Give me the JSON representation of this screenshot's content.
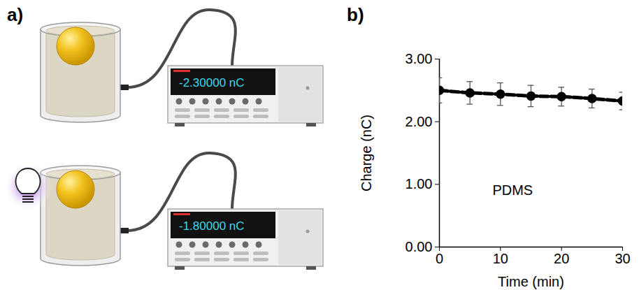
{
  "chart_data": {
    "type": "line",
    "panel_label": "b)",
    "x_label": "Time (min)",
    "y_label": "Charge (nC)",
    "x": [
      0,
      5,
      10,
      15,
      20,
      25,
      30
    ],
    "values": [
      2.5,
      2.46,
      2.44,
      2.41,
      2.4,
      2.37,
      2.33
    ],
    "error": [
      0.2,
      0.18,
      0.18,
      0.17,
      0.15,
      0.15,
      0.14
    ],
    "color": "#000000",
    "marker": "circle",
    "line_style": "dashed",
    "xlim": [
      0,
      30
    ],
    "xticks": [
      0,
      10,
      20,
      30
    ],
    "ylim": [
      0,
      3
    ],
    "yticks": [
      {
        "value": 0,
        "label": "0.00"
      },
      {
        "value": 1,
        "label": "1.00"
      },
      {
        "value": 2,
        "label": "2.00"
      },
      {
        "value": 3,
        "label": "3.00"
      }
    ],
    "grid": false,
    "annotations": [
      {
        "text": "PDMS",
        "x": 12,
        "y": 0.9
      }
    ]
  },
  "diagram": {
    "panel_label": "a)",
    "meters": [
      {
        "reading": "-2.30000 nC",
        "light": false
      },
      {
        "reading": "-1.80000 nC",
        "light": true
      }
    ]
  }
}
